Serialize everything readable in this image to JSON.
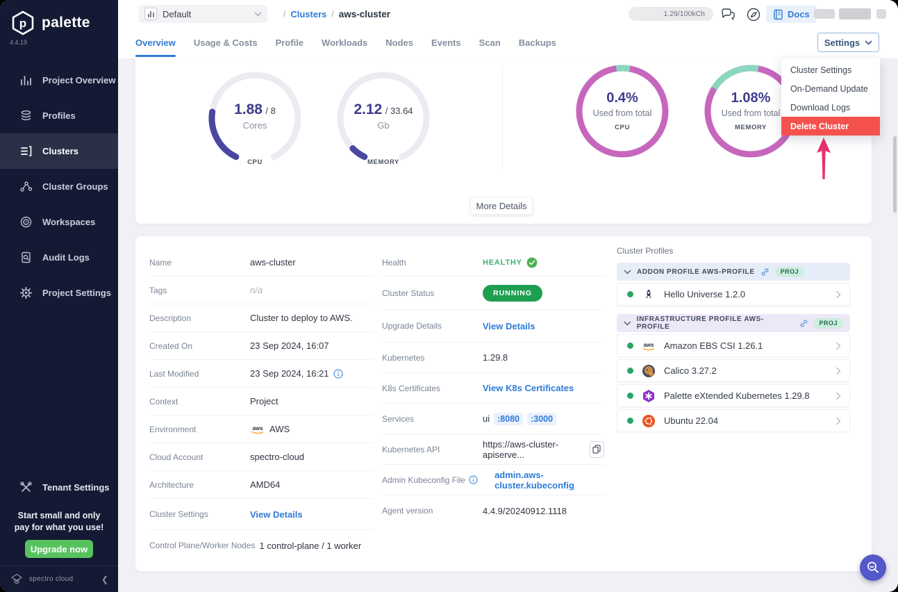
{
  "app": {
    "brand": "palette",
    "version": "4.4.19"
  },
  "sidebar": {
    "items": [
      {
        "label": "Project Overview"
      },
      {
        "label": "Profiles"
      },
      {
        "label": "Clusters"
      },
      {
        "label": "Cluster Groups"
      },
      {
        "label": "Workspaces"
      },
      {
        "label": "Audit Logs"
      },
      {
        "label": "Project Settings"
      }
    ],
    "tenant_settings_label": "Tenant Settings",
    "promo": {
      "text": "Start small and only pay for what you use!",
      "button": "Upgrade now"
    },
    "footer_brand": "spectro cloud",
    "collapse_glyph": "❮"
  },
  "topbar": {
    "project_selector": {
      "value": "Default"
    },
    "breadcrumb": {
      "separator": "/",
      "items": [
        "Clusters",
        "aws-cluster"
      ]
    },
    "usage_badge": "1.29/100kCh",
    "docs_label": "Docs"
  },
  "tabs": {
    "items": [
      "Overview",
      "Usage & Costs",
      "Profile",
      "Workloads",
      "Nodes",
      "Events",
      "Scan",
      "Backups"
    ],
    "active": "Overview"
  },
  "settings": {
    "button_label": "Settings",
    "menu_items": [
      "Cluster Settings",
      "On-Demand Update",
      "Download Logs",
      "Delete Cluster"
    ]
  },
  "overview": {
    "cpu_gauge": {
      "value": "1.88",
      "total": "/ 8",
      "unit": "Cores",
      "label": "CPU",
      "fraction": 0.235
    },
    "memory_gauge": {
      "value": "2.12",
      "total": "/ 33.64",
      "unit": "Gb",
      "label": "MEMORY",
      "fraction": 0.063
    },
    "cpu_donut": {
      "value": "0.4%",
      "caption": "Used from total",
      "label": "CPU",
      "segment_start": -8,
      "segment_sweep": 18
    },
    "memory_donut": {
      "value": "1.08%",
      "caption": "Used from total",
      "label": "MEMORY",
      "segment_start": -58,
      "segment_sweep": 68
    },
    "more_details_button": "More Details"
  },
  "details": {
    "name": {
      "label": "Name",
      "value": "aws-cluster"
    },
    "tags": {
      "label": "Tags",
      "value": "n/a"
    },
    "description": {
      "label": "Description",
      "value": "Cluster to deploy to AWS."
    },
    "created_on": {
      "label": "Created On",
      "value": "23 Sep 2024, 16:07"
    },
    "last_modified": {
      "label": "Last Modified",
      "value": "23 Sep 2024, 16:21"
    },
    "context": {
      "label": "Context",
      "value": "Project"
    },
    "environment": {
      "label": "Environment",
      "value": "AWS"
    },
    "cloud_account": {
      "label": "Cloud Account",
      "value": "spectro-cloud"
    },
    "architecture": {
      "label": "Architecture",
      "value": "AMD64"
    },
    "cluster_settings": {
      "label": "Cluster Settings",
      "link": "View Details"
    },
    "nodes": {
      "label": "Control Plane/Worker Nodes",
      "value": "1 control-plane / 1 worker"
    },
    "health": {
      "label": "Health",
      "value": "HEALTHY"
    },
    "cluster_status": {
      "label": "Cluster Status",
      "value": "RUNNING"
    },
    "upgrade_details": {
      "label": "Upgrade Details",
      "link": "View Details"
    },
    "kubernetes": {
      "label": "Kubernetes",
      "value": "1.29.8"
    },
    "k8s_certificates": {
      "label": "K8s Certificates",
      "link": "View K8s Certificates"
    },
    "services": {
      "label": "Services",
      "prefix": "ui",
      "ports": [
        ":8080",
        ":3000"
      ]
    },
    "kubernetes_api": {
      "label": "Kubernetes API",
      "value": "https://aws-cluster-apiserve..."
    },
    "admin_kubeconfig": {
      "label": "Admin Kubeconfig File",
      "link": "admin.aws-cluster.kubeconfig"
    },
    "agent_version": {
      "label": "Agent version",
      "value": "4.4.9/20240912.1118"
    }
  },
  "cluster_profiles": {
    "title": "Cluster Profiles",
    "sections": [
      {
        "header": "ADDON PROFILE AWS-PROFILE",
        "badge": "PROJ",
        "items": [
          {
            "name": "Hello Universe 1.2.0"
          }
        ]
      },
      {
        "header": "INFRASTRUCTURE PROFILE AWS-PROFILE",
        "badge": "PROJ",
        "items": [
          {
            "name": "Amazon EBS CSI 1.26.1"
          },
          {
            "name": "Calico 3.27.2"
          },
          {
            "name": "Palette eXtended Kubernetes 1.29.8"
          },
          {
            "name": "Ubuntu 22.04"
          }
        ]
      }
    ]
  },
  "colors": {
    "accent_blue": "#2F7BD9",
    "sidebar_bg": "#141A33",
    "danger_red": "#F4514E",
    "running_green": "#1E9E50",
    "donut_pink": "#C667BD",
    "donut_teal": "#8BD6BF",
    "gauge_indigo": "#4A47A3",
    "upgrade_green": "#57C35F"
  }
}
